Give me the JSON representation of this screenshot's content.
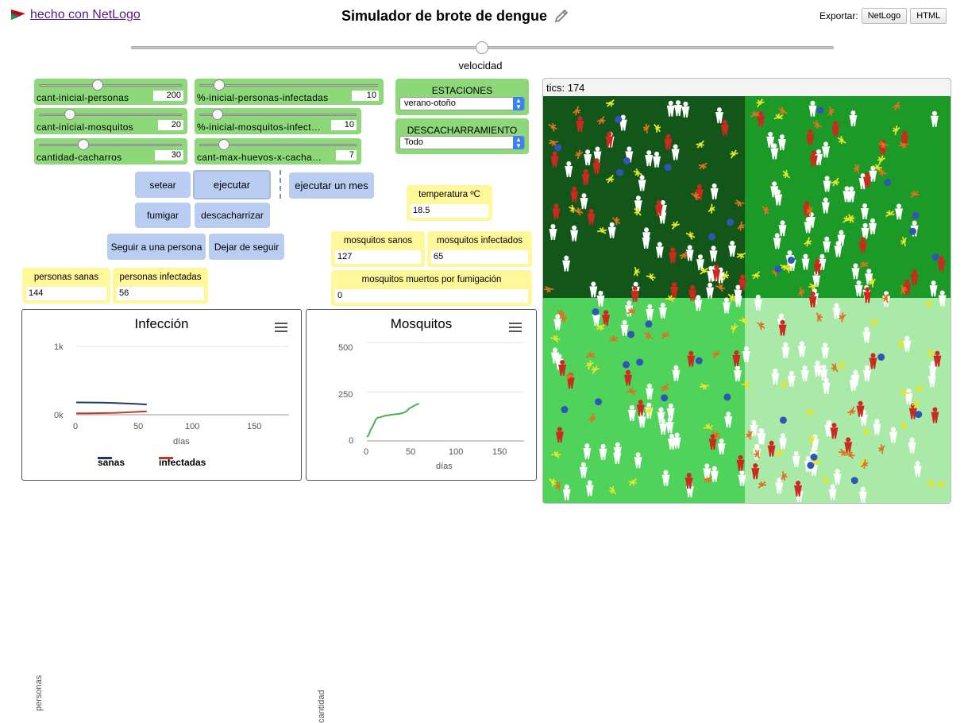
{
  "header": {
    "netlogo_link": "hecho con NetLogo",
    "title": "Simulador de brote de dengue",
    "export_label": "Exportar:",
    "export_netlogo": "NetLogo",
    "export_html": "HTML"
  },
  "speed": {
    "label": "velocidad",
    "value": 0.5
  },
  "sliders": {
    "personas": {
      "label": "cant-inicial-personas",
      "value": "200",
      "fraction": 0.42
    },
    "infectadas": {
      "label": "%-inicial-personas-infectadas",
      "value": "10",
      "fraction": 0.1
    },
    "mosquitos": {
      "label": "cant-inicial-mosquitos",
      "value": "20",
      "fraction": 0.2
    },
    "mosquitos_infect": {
      "label": "%-inicial-mosquitos-infect…",
      "value": "10",
      "fraction": 0.1
    },
    "cacharros": {
      "label": "cantidad-cacharros",
      "value": "30",
      "fraction": 0.3
    },
    "huevos": {
      "label": "cant-max-huevos-x-cacha…",
      "value": "7",
      "fraction": 0.15
    }
  },
  "choosers": {
    "estaciones": {
      "label": "ESTACIONES",
      "value": "verano-otoño"
    },
    "descacharramiento": {
      "label": "DESCACHARRAMIENTO",
      "value": "Todo"
    }
  },
  "buttons": {
    "setear": "setear",
    "ejecutar": "ejecutar",
    "ejecutar_mes": "ejecutar un mes",
    "fumigar": "fumigar",
    "descacharrizar": "descacharrizar",
    "seguir": "Seguir a una persona",
    "dejar": "Dejar de seguir"
  },
  "monitors": {
    "temperatura": {
      "label": "temperatura ºC",
      "value": "18.5"
    },
    "mosquitos_sanos": {
      "label": "mosquitos sanos",
      "value": "127"
    },
    "mosquitos_infectados": {
      "label": "mosquitos infectados",
      "value": "65"
    },
    "muertos": {
      "label": "mosquitos muertos por fumigación",
      "value": "0"
    },
    "personas_sanas": {
      "label": "personas sanas",
      "value": "144"
    },
    "personas_infectadas": {
      "label": "personas infectadas",
      "value": "56"
    }
  },
  "view": {
    "ticks_label": "tics: 174"
  },
  "colors": {
    "widget_green": "#8dd97a",
    "button_blue": "#b9cdf2",
    "monitor_yellow": "#fff799",
    "sanas_line": "#1f3a5f",
    "infectadas_line": "#c0392b",
    "mosquitos_line": "#4caf50"
  },
  "chart_data": [
    {
      "type": "line",
      "title": "Infección",
      "xlabel": "días",
      "ylabel": "personas",
      "xlim": [
        0,
        175
      ],
      "ylim": [
        0,
        1000
      ],
      "xticks": [
        "0",
        "50",
        "100",
        "150"
      ],
      "yticks": [
        "0k",
        "1k"
      ],
      "legend": "bottom",
      "series": [
        {
          "name": "sanas",
          "color": "#1f3a5f",
          "points": [
            [
              0,
              180
            ],
            [
              10,
              179
            ],
            [
              20,
              177
            ],
            [
              30,
              173
            ],
            [
              40,
              166
            ],
            [
              50,
              158
            ],
            [
              58,
              150
            ]
          ]
        },
        {
          "name": "infectadas",
          "color": "#c0392b",
          "points": [
            [
              0,
              20
            ],
            [
              10,
              21
            ],
            [
              20,
              23
            ],
            [
              30,
              27
            ],
            [
              40,
              34
            ],
            [
              50,
              42
            ],
            [
              58,
              50
            ]
          ]
        }
      ]
    },
    {
      "type": "line",
      "title": "Mosquitos",
      "xlabel": "días",
      "ylabel": "cantidad",
      "xlim": [
        0,
        175
      ],
      "ylim": [
        0,
        530
      ],
      "xticks": [
        "0",
        "50",
        "100",
        "150"
      ],
      "yticks": [
        "0",
        "250",
        "500"
      ],
      "legend": "none",
      "series": [
        {
          "name": "",
          "color": "#4caf50",
          "points": [
            [
              0,
              20
            ],
            [
              2,
              30
            ],
            [
              4,
              55
            ],
            [
              6,
              70
            ],
            [
              8,
              90
            ],
            [
              10,
              110
            ],
            [
              12,
              118
            ],
            [
              16,
              122
            ],
            [
              20,
              128
            ],
            [
              24,
              131
            ],
            [
              28,
              134
            ],
            [
              32,
              136
            ],
            [
              36,
              138
            ],
            [
              40,
              142
            ],
            [
              44,
              150
            ],
            [
              46,
              160
            ],
            [
              48,
              168
            ],
            [
              50,
              172
            ],
            [
              52,
              178
            ],
            [
              54,
              182
            ],
            [
              56,
              187
            ],
            [
              58,
              190
            ]
          ]
        }
      ]
    }
  ]
}
